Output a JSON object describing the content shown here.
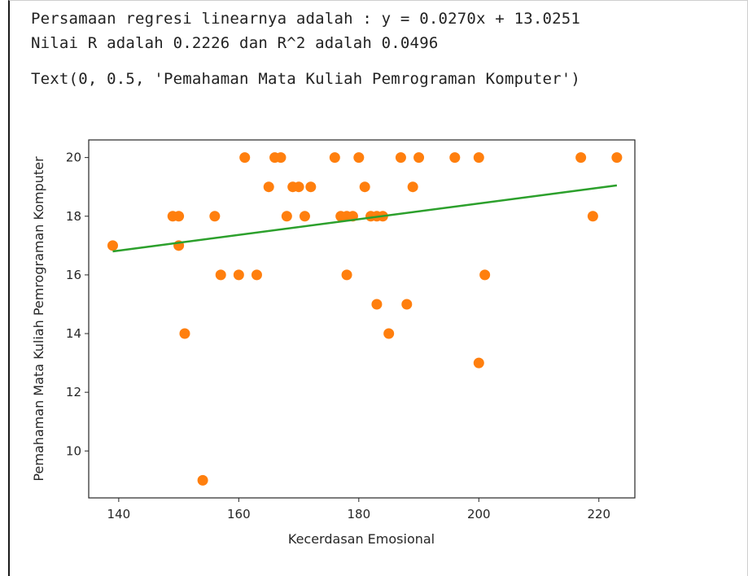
{
  "output": {
    "line1": "Persamaan regresi linearnya adalah : y = 0.0270x + 13.0251",
    "line2": "Nilai R adalah 0.2226 dan R^2 adalah 0.0496",
    "line3": "Text(0, 0.5, 'Pemahaman Mata Kuliah Pemrograman Komputer')"
  },
  "chart_data": {
    "type": "scatter",
    "xlabel": "Kecerdasan Emosional",
    "ylabel": "Pemahaman Mata Kuliah Pemrograman Komputer",
    "xlim": [
      135,
      226
    ],
    "ylim": [
      8.4,
      20.6
    ],
    "xticks": [
      140,
      160,
      180,
      200,
      220
    ],
    "yticks": [
      10,
      12,
      14,
      16,
      18,
      20
    ],
    "grid": false,
    "points_color": "#ff7f0e",
    "line_color": "#2ca02c",
    "regression": {
      "slope": 0.027,
      "intercept": 13.0251,
      "x_range": [
        139,
        223
      ]
    },
    "points": [
      [
        139,
        17
      ],
      [
        149,
        18
      ],
      [
        150,
        18
      ],
      [
        150,
        17
      ],
      [
        151,
        14
      ],
      [
        154,
        9
      ],
      [
        156,
        18
      ],
      [
        157,
        16
      ],
      [
        160,
        16
      ],
      [
        161,
        20
      ],
      [
        163,
        16
      ],
      [
        165,
        19
      ],
      [
        166,
        20
      ],
      [
        167,
        20
      ],
      [
        168,
        18
      ],
      [
        169,
        19
      ],
      [
        170,
        19
      ],
      [
        171,
        18
      ],
      [
        172,
        19
      ],
      [
        176,
        20
      ],
      [
        177,
        18
      ],
      [
        178,
        18
      ],
      [
        178,
        16
      ],
      [
        179,
        18
      ],
      [
        180,
        20
      ],
      [
        181,
        19
      ],
      [
        182,
        18
      ],
      [
        183,
        18
      ],
      [
        183,
        15
      ],
      [
        184,
        18
      ],
      [
        185,
        14
      ],
      [
        187,
        20
      ],
      [
        188,
        15
      ],
      [
        189,
        19
      ],
      [
        190,
        20
      ],
      [
        196,
        20
      ],
      [
        200,
        20
      ],
      [
        200,
        13
      ],
      [
        201,
        16
      ],
      [
        217,
        20
      ],
      [
        219,
        18
      ],
      [
        223,
        20
      ]
    ]
  }
}
